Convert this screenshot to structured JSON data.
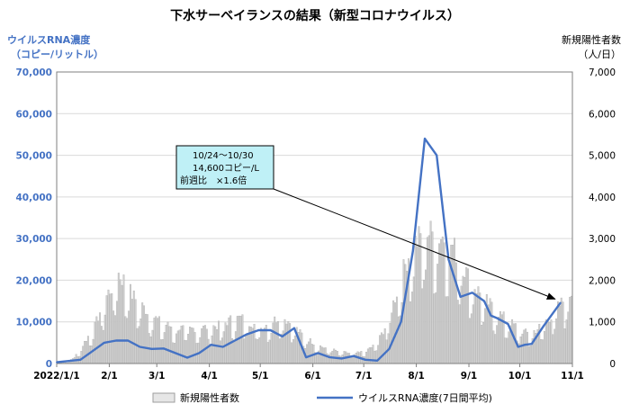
{
  "chart_data": {
    "type": "bar+line",
    "title": "下水サーベイランスの結果（新型コロナウイルス）",
    "y_left_label": [
      "ウイルスRNA濃度",
      "（コピー/リットル）"
    ],
    "y_right_label": [
      "新規陽性者数",
      "（人/日）"
    ],
    "y_left_ticks": [
      "0",
      "10,000",
      "20,000",
      "30,000",
      "40,000",
      "50,000",
      "60,000",
      "70,000"
    ],
    "y_right_ticks": [
      "0",
      "1,000",
      "2,000",
      "3,000",
      "4,000",
      "5,000",
      "6,000",
      "7,000"
    ],
    "y_left_range": [
      0,
      70000
    ],
    "y_right_range": [
      0,
      7000
    ],
    "x_range": [
      "2022-01-01",
      "2022-11-01"
    ],
    "x_tick_labels": [
      "2022/1/1",
      "2/1",
      "3/1",
      "4/1",
      "5/1",
      "6/1",
      "7/1",
      "8/1",
      "9/1",
      "10/1",
      "11/1"
    ],
    "x_tick_days": [
      0,
      31,
      59,
      90,
      120,
      151,
      181,
      212,
      243,
      273,
      304
    ],
    "bar_series": {
      "name": "新規陽性者数",
      "color": "#d0d0d0",
      "daily_approx": [
        {
          "day": 0,
          "value": 20
        },
        {
          "day": 6,
          "value": 40
        },
        {
          "day": 10,
          "value": 150
        },
        {
          "day": 14,
          "value": 380
        },
        {
          "day": 18,
          "value": 650
        },
        {
          "day": 22,
          "value": 900
        },
        {
          "day": 26,
          "value": 1350
        },
        {
          "day": 30,
          "value": 1700
        },
        {
          "day": 34,
          "value": 1950
        },
        {
          "day": 36,
          "value": 2150
        },
        {
          "day": 40,
          "value": 1950
        },
        {
          "day": 44,
          "value": 1650
        },
        {
          "day": 48,
          "value": 1450
        },
        {
          "day": 52,
          "value": 1300
        },
        {
          "day": 56,
          "value": 1150
        },
        {
          "day": 60,
          "value": 1020
        },
        {
          "day": 66,
          "value": 900
        },
        {
          "day": 72,
          "value": 850
        },
        {
          "day": 78,
          "value": 830
        },
        {
          "day": 84,
          "value": 860
        },
        {
          "day": 90,
          "value": 880
        },
        {
          "day": 96,
          "value": 920
        },
        {
          "day": 102,
          "value": 1050
        },
        {
          "day": 108,
          "value": 1100
        },
        {
          "day": 114,
          "value": 980
        },
        {
          "day": 120,
          "value": 850
        },
        {
          "day": 126,
          "value": 1000
        },
        {
          "day": 132,
          "value": 1150
        },
        {
          "day": 138,
          "value": 950
        },
        {
          "day": 144,
          "value": 700
        },
        {
          "day": 150,
          "value": 520
        },
        {
          "day": 156,
          "value": 400
        },
        {
          "day": 162,
          "value": 330
        },
        {
          "day": 168,
          "value": 270
        },
        {
          "day": 174,
          "value": 240
        },
        {
          "day": 178,
          "value": 260
        },
        {
          "day": 182,
          "value": 320
        },
        {
          "day": 186,
          "value": 420
        },
        {
          "day": 190,
          "value": 620
        },
        {
          "day": 194,
          "value": 950
        },
        {
          "day": 198,
          "value": 1450
        },
        {
          "day": 202,
          "value": 2000
        },
        {
          "day": 206,
          "value": 2500
        },
        {
          "day": 210,
          "value": 2850
        },
        {
          "day": 214,
          "value": 3050
        },
        {
          "day": 218,
          "value": 3150
        },
        {
          "day": 222,
          "value": 3100
        },
        {
          "day": 226,
          "value": 3050
        },
        {
          "day": 230,
          "value": 3000
        },
        {
          "day": 234,
          "value": 2750
        },
        {
          "day": 238,
          "value": 2450
        },
        {
          "day": 242,
          "value": 2100
        },
        {
          "day": 246,
          "value": 1850
        },
        {
          "day": 250,
          "value": 1650
        },
        {
          "day": 254,
          "value": 1450
        },
        {
          "day": 258,
          "value": 1300
        },
        {
          "day": 262,
          "value": 1150
        },
        {
          "day": 266,
          "value": 1020
        },
        {
          "day": 270,
          "value": 900
        },
        {
          "day": 274,
          "value": 780
        },
        {
          "day": 278,
          "value": 720
        },
        {
          "day": 282,
          "value": 800
        },
        {
          "day": 286,
          "value": 950
        },
        {
          "day": 290,
          "value": 1100
        },
        {
          "day": 294,
          "value": 1300
        },
        {
          "day": 298,
          "value": 1500
        },
        {
          "day": 302,
          "value": 1700
        },
        {
          "day": 304,
          "value": 1750
        }
      ]
    },
    "line_series": {
      "name": "ウイルスRNA濃度(7日間平均)",
      "color": "#4472c4",
      "points": [
        {
          "day": 0,
          "value": 300
        },
        {
          "day": 14,
          "value": 900
        },
        {
          "day": 28,
          "value": 5000
        },
        {
          "day": 35,
          "value": 5500
        },
        {
          "day": 42,
          "value": 5500
        },
        {
          "day": 49,
          "value": 4000
        },
        {
          "day": 56,
          "value": 3500
        },
        {
          "day": 63,
          "value": 3600
        },
        {
          "day": 70,
          "value": 2500
        },
        {
          "day": 77,
          "value": 1400
        },
        {
          "day": 84,
          "value": 2500
        },
        {
          "day": 91,
          "value": 4500
        },
        {
          "day": 98,
          "value": 4000
        },
        {
          "day": 105,
          "value": 5500
        },
        {
          "day": 112,
          "value": 7000
        },
        {
          "day": 119,
          "value": 8000
        },
        {
          "day": 126,
          "value": 8000
        },
        {
          "day": 133,
          "value": 6500
        },
        {
          "day": 140,
          "value": 8500
        },
        {
          "day": 147,
          "value": 1500
        },
        {
          "day": 154,
          "value": 2500
        },
        {
          "day": 161,
          "value": 1500
        },
        {
          "day": 168,
          "value": 1200
        },
        {
          "day": 175,
          "value": 1800
        },
        {
          "day": 182,
          "value": 900
        },
        {
          "day": 189,
          "value": 700
        },
        {
          "day": 196,
          "value": 3500
        },
        {
          "day": 203,
          "value": 10000
        },
        {
          "day": 210,
          "value": 27000
        },
        {
          "day": 217,
          "value": 54000
        },
        {
          "day": 224,
          "value": 50000
        },
        {
          "day": 231,
          "value": 25000
        },
        {
          "day": 238,
          "value": 16000
        },
        {
          "day": 245,
          "value": 17000
        },
        {
          "day": 252,
          "value": 15000
        },
        {
          "day": 256,
          "value": 11500
        },
        {
          "day": 259,
          "value": 11000
        },
        {
          "day": 266,
          "value": 9500
        },
        {
          "day": 272,
          "value": 4000
        },
        {
          "day": 276,
          "value": 4500
        },
        {
          "day": 280,
          "value": 4700
        },
        {
          "day": 287,
          "value": 9000
        },
        {
          "day": 297,
          "value": 14600
        }
      ]
    },
    "annotation": {
      "lines": [
        "10/24～10/30",
        "14,600コピー/L",
        "前週比　×1.6倍"
      ],
      "target_day": 297,
      "target_value": 14600
    },
    "legend": {
      "position": "bottom",
      "bar_label": "新規陽性者数",
      "line_label": "ウイルスRNA濃度(7日間平均)"
    }
  }
}
